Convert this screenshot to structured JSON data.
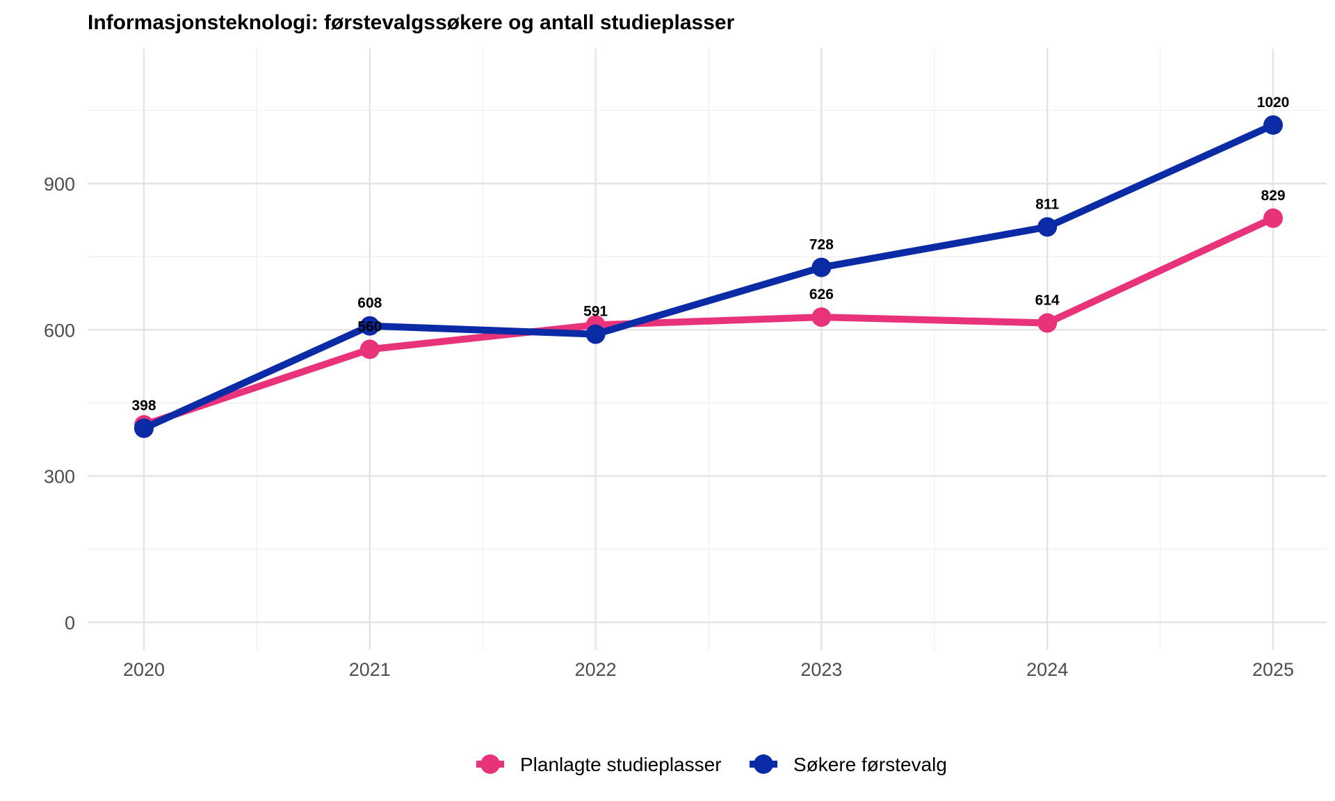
{
  "chart_data": {
    "type": "line",
    "title": "Informasjonsteknologi: førstevalgssøkere og antall studieplasser",
    "xlabel": "",
    "ylabel": "",
    "categories": [
      "2020",
      "2021",
      "2022",
      "2023",
      "2024",
      "2025"
    ],
    "ylim": [
      -55,
      1145
    ],
    "yticks": [
      0,
      300,
      600,
      900
    ],
    "grid": true,
    "legend_position": "bottom",
    "series": [
      {
        "name": "Planlagte studieplasser",
        "color": "#e8337a",
        "values": [
          405,
          560,
          610,
          626,
          614,
          829
        ],
        "labels": [
          "",
          "560",
          "",
          "626",
          "614",
          "829"
        ]
      },
      {
        "name": "Søkere førstevalg",
        "color": "#0a2aa6",
        "values": [
          398,
          608,
          591,
          728,
          811,
          1020
        ],
        "labels": [
          "398",
          "608",
          "591",
          "728",
          "811",
          "1020"
        ]
      }
    ]
  }
}
